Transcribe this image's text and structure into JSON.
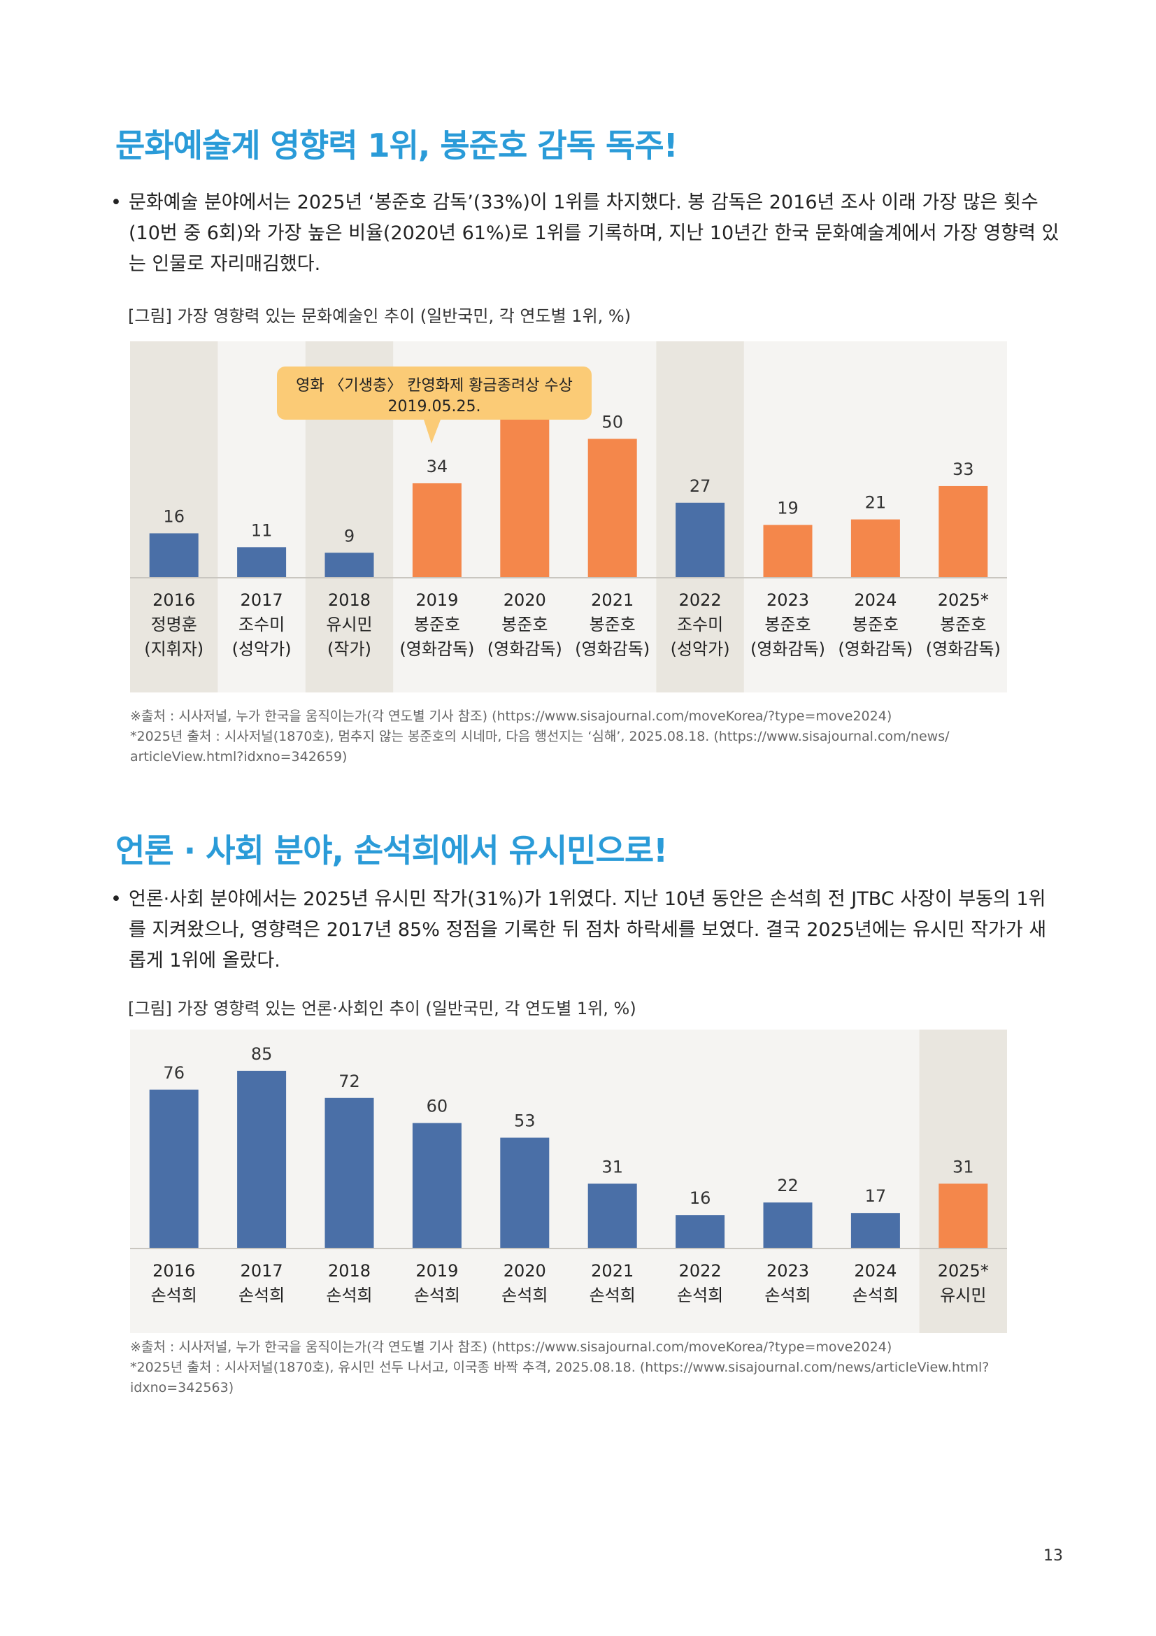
{
  "section1": {
    "heading": "문화예술계 영향력 1위, 봉준호 감독 독주!",
    "bullet": "문화예술 분야에서는 2025년 ‘봉준호 감독’(33%)이 1위를 차지했다. 봉 감독은 2016년 조사 이래 가장 많은 횟수 (10번 중 6회)와 가장 높은 비율(2020년 61%)로 1위를 기록하며, 지난 10년간 한국 문화예술계에서 가장 영향력 있는 인물로 자리매김했다.",
    "caption": "[그림] 가장 영향력 있는 문화예술인 추이 (일반국민, 각 연도별 1위, %)",
    "callout": {
      "line1": "영화 〈기생충〉 칸영화제 황금종려상 수상",
      "line2": "2019.05.25."
    },
    "source_lines": [
      "※출처 : 시사저널, 누가 한국을 움직이는가(각 연도별 기사 참조) (https://www.sisajournal.com/moveKorea/?type=move2024)",
      "*2025년 출처 : 시사저널(1870호), 멈추지 않는 봉준호의 시네마, 다음 행선지는 ‘심해’, 2025.08.18. (https://www.sisajournal.com/news/",
      "articleView.html?idxno=342659)"
    ]
  },
  "section2": {
    "heading": "언론 · 사회 분야, 손석희에서 유시민으로!",
    "bullet": "언론·사회 분야에서는 2025년 유시민 작가(31%)가 1위였다. 지난 10년 동안은 손석희 전 JTBC 사장이 부동의 1위를 지켜왔으나, 영향력은 2017년 85% 정점을 기록한 뒤 점차 하락세를 보였다. 결국 2025년에는 유시민 작가가 새롭게 1위에 올랐다.",
    "caption": "[그림] 가장 영향력 있는 언론·사회인 추이 (일반국민, 각 연도별 1위, %)",
    "source_lines": [
      "※출처 : 시사저널, 누가 한국을 움직이는가(각 연도별 기사 참조) (https://www.sisajournal.com/moveKorea/?type=move2024)",
      "*2025년 출처 : 시사저널(1870호), 유시민 선두 나서고, 이국종 바짝 추격, 2025.08.18. (https://www.sisajournal.com/news/articleView.html?",
      "idxno=342563)"
    ]
  },
  "colors": {
    "heading": "#2a9bd8",
    "blue": "#4a6fa7",
    "orange": "#f4874b",
    "callout": "#fbcb76",
    "band": "#e9e6df",
    "panel": "#f5f4f2"
  },
  "page_number": "13",
  "chart_data": [
    {
      "type": "bar",
      "categories": [
        "2016",
        "2017",
        "2018",
        "2019",
        "2020",
        "2021",
        "2022",
        "2023",
        "2024",
        "2025*"
      ],
      "names": [
        "정명훈",
        "조수미",
        "유시민",
        "봉준호",
        "봉준호",
        "봉준호",
        "조수미",
        "봉준호",
        "봉준호",
        "봉준호"
      ],
      "roles": [
        "(지휘자)",
        "(성악가)",
        "(작가)",
        "(영화감독)",
        "(영화감독)",
        "(영화감독)",
        "(성악가)",
        "(영화감독)",
        "(영화감독)",
        "(영화감독)"
      ],
      "values": [
        16,
        11,
        9,
        34,
        61,
        50,
        27,
        19,
        21,
        33
      ],
      "bar_colors": [
        "blue",
        "blue",
        "blue",
        "orange",
        "orange",
        "orange",
        "blue",
        "orange",
        "orange",
        "orange"
      ],
      "highlighted": [
        true,
        false,
        true,
        false,
        false,
        false,
        true,
        false,
        false,
        false
      ],
      "ylim": [
        0,
        70
      ],
      "grid": false,
      "title": "",
      "xlabel": "",
      "ylabel": ""
    },
    {
      "type": "bar",
      "categories": [
        "2016",
        "2017",
        "2018",
        "2019",
        "2020",
        "2021",
        "2022",
        "2023",
        "2024",
        "2025*"
      ],
      "names": [
        "손석희",
        "손석희",
        "손석희",
        "손석희",
        "손석희",
        "손석희",
        "손석희",
        "손석희",
        "손석희",
        "유시민"
      ],
      "values": [
        76,
        85,
        72,
        60,
        53,
        31,
        16,
        22,
        17,
        31
      ],
      "bar_colors": [
        "blue",
        "blue",
        "blue",
        "blue",
        "blue",
        "blue",
        "blue",
        "blue",
        "blue",
        "orange"
      ],
      "highlighted": [
        false,
        false,
        false,
        false,
        false,
        false,
        false,
        false,
        false,
        true
      ],
      "ylim": [
        0,
        95
      ],
      "grid": false,
      "title": "",
      "xlabel": "",
      "ylabel": ""
    }
  ]
}
